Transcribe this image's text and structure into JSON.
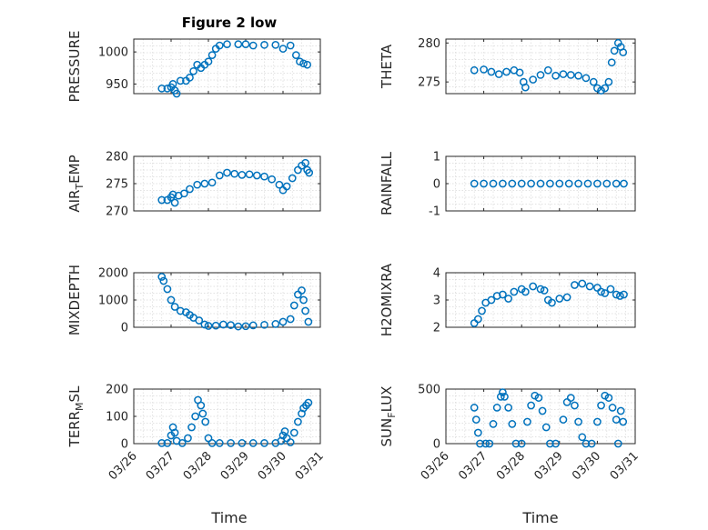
{
  "figure": {
    "title": "Figure 2 low",
    "xlabel": "Time",
    "marker_color": "#0072BD"
  },
  "chart_data": [
    {
      "id": "pressure",
      "type": "scatter",
      "ylabel": "PRESSURE",
      "ylim": [
        935,
        1020
      ],
      "yticks": [
        {
          "v": 950,
          "label": "950"
        },
        {
          "v": 1000,
          "label": "1000"
        }
      ],
      "xlim": [
        0,
        5
      ],
      "xticks": [
        {
          "v": 0,
          "label": "03/26"
        },
        {
          "v": 1,
          "label": "03/27"
        },
        {
          "v": 2,
          "label": "03/28"
        },
        {
          "v": 3,
          "label": "03/29"
        },
        {
          "v": 4,
          "label": "03/30"
        },
        {
          "v": 5,
          "label": "03/31"
        }
      ],
      "points": [
        [
          0.75,
          943
        ],
        [
          0.9,
          943
        ],
        [
          1.0,
          945
        ],
        [
          1.05,
          950
        ],
        [
          1.1,
          940
        ],
        [
          1.15,
          935
        ],
        [
          1.25,
          955
        ],
        [
          1.4,
          955
        ],
        [
          1.5,
          960
        ],
        [
          1.6,
          970
        ],
        [
          1.7,
          980
        ],
        [
          1.8,
          975
        ],
        [
          1.9,
          980
        ],
        [
          2.0,
          985
        ],
        [
          2.1,
          995
        ],
        [
          2.2,
          1005
        ],
        [
          2.3,
          1010
        ],
        [
          2.5,
          1012
        ],
        [
          2.8,
          1012
        ],
        [
          3.0,
          1012
        ],
        [
          3.2,
          1010
        ],
        [
          3.5,
          1011
        ],
        [
          3.8,
          1011
        ],
        [
          4.0,
          1005
        ],
        [
          4.2,
          1010
        ],
        [
          4.35,
          995
        ],
        [
          4.45,
          985
        ],
        [
          4.55,
          982
        ],
        [
          4.65,
          980
        ]
      ]
    },
    {
      "id": "theta",
      "type": "scatter",
      "ylabel": "THETA",
      "ylim": [
        273.5,
        280.5
      ],
      "yticks": [
        {
          "v": 275,
          "label": "275"
        },
        {
          "v": 280,
          "label": "280"
        }
      ],
      "xlim": [
        0,
        5
      ],
      "xticks": [
        {
          "v": 0,
          "label": "03/26"
        },
        {
          "v": 1,
          "label": "03/27"
        },
        {
          "v": 2,
          "label": "03/28"
        },
        {
          "v": 3,
          "label": "03/29"
        },
        {
          "v": 4,
          "label": "03/30"
        },
        {
          "v": 5,
          "label": "03/31"
        }
      ],
      "points": [
        [
          0.75,
          276.5
        ],
        [
          1.0,
          276.6
        ],
        [
          1.2,
          276.3
        ],
        [
          1.4,
          276.0
        ],
        [
          1.6,
          276.3
        ],
        [
          1.8,
          276.5
        ],
        [
          1.95,
          276.2
        ],
        [
          2.05,
          275.0
        ],
        [
          2.1,
          274.3
        ],
        [
          2.3,
          275.3
        ],
        [
          2.5,
          275.9
        ],
        [
          2.7,
          276.5
        ],
        [
          2.9,
          275.8
        ],
        [
          3.1,
          276.0
        ],
        [
          3.3,
          275.9
        ],
        [
          3.5,
          275.8
        ],
        [
          3.7,
          275.5
        ],
        [
          3.9,
          275.0
        ],
        [
          4.0,
          274.2
        ],
        [
          4.1,
          273.9
        ],
        [
          4.2,
          274.2
        ],
        [
          4.3,
          275.0
        ],
        [
          4.38,
          277.5
        ],
        [
          4.45,
          279.0
        ],
        [
          4.55,
          280.0
        ],
        [
          4.62,
          279.5
        ],
        [
          4.68,
          278.8
        ]
      ]
    },
    {
      "id": "air_temp",
      "type": "scatter",
      "ylabel": "AIR_TEMP",
      "ylim": [
        270,
        280
      ],
      "yticks": [
        {
          "v": 270,
          "label": "270"
        },
        {
          "v": 275,
          "label": "275"
        },
        {
          "v": 280,
          "label": "280"
        }
      ],
      "xlim": [
        0,
        5
      ],
      "xticks": [
        {
          "v": 0,
          "label": "03/26"
        },
        {
          "v": 1,
          "label": "03/27"
        },
        {
          "v": 2,
          "label": "03/28"
        },
        {
          "v": 3,
          "label": "03/29"
        },
        {
          "v": 4,
          "label": "03/30"
        },
        {
          "v": 5,
          "label": "03/31"
        }
      ],
      "points": [
        [
          0.75,
          272.0
        ],
        [
          0.9,
          272.0
        ],
        [
          1.0,
          272.5
        ],
        [
          1.05,
          273.0
        ],
        [
          1.1,
          271.5
        ],
        [
          1.2,
          272.8
        ],
        [
          1.35,
          273.2
        ],
        [
          1.5,
          274.0
        ],
        [
          1.7,
          274.8
        ],
        [
          1.9,
          275.0
        ],
        [
          2.1,
          275.2
        ],
        [
          2.3,
          276.5
        ],
        [
          2.5,
          277.0
        ],
        [
          2.7,
          276.8
        ],
        [
          2.9,
          276.6
        ],
        [
          3.1,
          276.7
        ],
        [
          3.3,
          276.5
        ],
        [
          3.5,
          276.3
        ],
        [
          3.7,
          275.8
        ],
        [
          3.9,
          274.8
        ],
        [
          4.0,
          273.8
        ],
        [
          4.1,
          274.5
        ],
        [
          4.25,
          276.0
        ],
        [
          4.4,
          277.5
        ],
        [
          4.5,
          278.3
        ],
        [
          4.6,
          278.8
        ],
        [
          4.65,
          277.5
        ],
        [
          4.7,
          277.0
        ]
      ]
    },
    {
      "id": "rainfall",
      "type": "scatter",
      "ylabel": "RAINFALL",
      "ylim": [
        -1,
        1
      ],
      "yticks": [
        {
          "v": -1,
          "label": "-1"
        },
        {
          "v": 0,
          "label": "0"
        },
        {
          "v": 1,
          "label": "1"
        }
      ],
      "xlim": [
        0,
        5
      ],
      "xticks": [
        {
          "v": 0,
          "label": "03/26"
        },
        {
          "v": 1,
          "label": "03/27"
        },
        {
          "v": 2,
          "label": "03/28"
        },
        {
          "v": 3,
          "label": "03/29"
        },
        {
          "v": 4,
          "label": "03/30"
        },
        {
          "v": 5,
          "label": "03/31"
        }
      ],
      "points": [
        [
          0.75,
          0
        ],
        [
          1.0,
          0
        ],
        [
          1.25,
          0
        ],
        [
          1.5,
          0
        ],
        [
          1.75,
          0
        ],
        [
          2.0,
          0
        ],
        [
          2.25,
          0
        ],
        [
          2.5,
          0
        ],
        [
          2.75,
          0
        ],
        [
          3.0,
          0
        ],
        [
          3.25,
          0
        ],
        [
          3.5,
          0
        ],
        [
          3.75,
          0
        ],
        [
          4.0,
          0
        ],
        [
          4.25,
          0
        ],
        [
          4.5,
          0
        ],
        [
          4.7,
          0
        ]
      ]
    },
    {
      "id": "mixdepth",
      "type": "scatter",
      "ylabel": "MIXDEPTH",
      "ylim": [
        0,
        2000
      ],
      "yticks": [
        {
          "v": 0,
          "label": "0"
        },
        {
          "v": 1000,
          "label": "1000"
        },
        {
          "v": 2000,
          "label": "2000"
        }
      ],
      "xlim": [
        0,
        5
      ],
      "xticks": [
        {
          "v": 0,
          "label": "03/26"
        },
        {
          "v": 1,
          "label": "03/27"
        },
        {
          "v": 2,
          "label": "03/28"
        },
        {
          "v": 3,
          "label": "03/29"
        },
        {
          "v": 4,
          "label": "03/30"
        },
        {
          "v": 5,
          "label": "03/31"
        }
      ],
      "points": [
        [
          0.75,
          1850
        ],
        [
          0.8,
          1700
        ],
        [
          0.9,
          1400
        ],
        [
          1.0,
          1000
        ],
        [
          1.1,
          750
        ],
        [
          1.25,
          600
        ],
        [
          1.4,
          550
        ],
        [
          1.5,
          450
        ],
        [
          1.6,
          350
        ],
        [
          1.75,
          250
        ],
        [
          1.9,
          100
        ],
        [
          2.0,
          50
        ],
        [
          2.2,
          60
        ],
        [
          2.4,
          100
        ],
        [
          2.6,
          80
        ],
        [
          2.8,
          30
        ],
        [
          3.0,
          40
        ],
        [
          3.2,
          70
        ],
        [
          3.5,
          90
        ],
        [
          3.8,
          120
        ],
        [
          4.0,
          200
        ],
        [
          4.2,
          300
        ],
        [
          4.3,
          800
        ],
        [
          4.4,
          1200
        ],
        [
          4.5,
          1350
        ],
        [
          4.55,
          1000
        ],
        [
          4.6,
          600
        ],
        [
          4.68,
          200
        ]
      ]
    },
    {
      "id": "h2omixra",
      "type": "scatter",
      "ylabel": "H2OMIXRA",
      "ylim": [
        2,
        4
      ],
      "yticks": [
        {
          "v": 2,
          "label": "2"
        },
        {
          "v": 3,
          "label": "3"
        },
        {
          "v": 4,
          "label": "4"
        }
      ],
      "xlim": [
        0,
        5
      ],
      "xticks": [
        {
          "v": 0,
          "label": "03/26"
        },
        {
          "v": 1,
          "label": "03/27"
        },
        {
          "v": 2,
          "label": "03/28"
        },
        {
          "v": 3,
          "label": "03/29"
        },
        {
          "v": 4,
          "label": "03/30"
        },
        {
          "v": 5,
          "label": "03/31"
        }
      ],
      "points": [
        [
          0.75,
          2.15
        ],
        [
          0.85,
          2.3
        ],
        [
          0.95,
          2.6
        ],
        [
          1.05,
          2.9
        ],
        [
          1.2,
          3.0
        ],
        [
          1.35,
          3.15
        ],
        [
          1.5,
          3.2
        ],
        [
          1.65,
          3.05
        ],
        [
          1.8,
          3.3
        ],
        [
          2.0,
          3.4
        ],
        [
          2.1,
          3.3
        ],
        [
          2.3,
          3.5
        ],
        [
          2.5,
          3.4
        ],
        [
          2.6,
          3.35
        ],
        [
          2.7,
          3.0
        ],
        [
          2.8,
          2.9
        ],
        [
          3.0,
          3.05
        ],
        [
          3.2,
          3.1
        ],
        [
          3.4,
          3.55
        ],
        [
          3.6,
          3.6
        ],
        [
          3.8,
          3.5
        ],
        [
          4.0,
          3.45
        ],
        [
          4.1,
          3.3
        ],
        [
          4.2,
          3.25
        ],
        [
          4.35,
          3.4
        ],
        [
          4.5,
          3.2
        ],
        [
          4.6,
          3.15
        ],
        [
          4.7,
          3.2
        ]
      ]
    },
    {
      "id": "terr_msl",
      "type": "scatter",
      "ylabel": "TERR_MSL",
      "ylim": [
        0,
        200
      ],
      "yticks": [
        {
          "v": 0,
          "label": "0"
        },
        {
          "v": 100,
          "label": "100"
        },
        {
          "v": 200,
          "label": "200"
        }
      ],
      "xlim": [
        0,
        5
      ],
      "xticks": [
        {
          "v": 0,
          "label": "03/26"
        },
        {
          "v": 1,
          "label": "03/27"
        },
        {
          "v": 2,
          "label": "03/28"
        },
        {
          "v": 3,
          "label": "03/29"
        },
        {
          "v": 4,
          "label": "03/30"
        },
        {
          "v": 5,
          "label": "03/31"
        }
      ],
      "points": [
        [
          0.75,
          2
        ],
        [
          0.9,
          2
        ],
        [
          1.0,
          30
        ],
        [
          1.05,
          60
        ],
        [
          1.1,
          40
        ],
        [
          1.15,
          10
        ],
        [
          1.3,
          2
        ],
        [
          1.45,
          20
        ],
        [
          1.55,
          60
        ],
        [
          1.65,
          100
        ],
        [
          1.72,
          160
        ],
        [
          1.8,
          140
        ],
        [
          1.85,
          110
        ],
        [
          1.92,
          80
        ],
        [
          2.0,
          20
        ],
        [
          2.1,
          2
        ],
        [
          2.3,
          2
        ],
        [
          2.6,
          2
        ],
        [
          2.9,
          2
        ],
        [
          3.2,
          2
        ],
        [
          3.5,
          2
        ],
        [
          3.8,
          2
        ],
        [
          3.95,
          10
        ],
        [
          4.0,
          30
        ],
        [
          4.05,
          45
        ],
        [
          4.1,
          20
        ],
        [
          4.2,
          5
        ],
        [
          4.3,
          40
        ],
        [
          4.4,
          80
        ],
        [
          4.5,
          110
        ],
        [
          4.55,
          130
        ],
        [
          4.62,
          140
        ],
        [
          4.68,
          150
        ]
      ]
    },
    {
      "id": "sun_flux",
      "type": "scatter",
      "ylabel": "SUN_FLUX",
      "ylim": [
        0,
        500
      ],
      "yticks": [
        {
          "v": 0,
          "label": "0"
        },
        {
          "v": 500,
          "label": "500"
        }
      ],
      "xlim": [
        0,
        5
      ],
      "xticks": [
        {
          "v": 0,
          "label": "03/26"
        },
        {
          "v": 1,
          "label": "03/27"
        },
        {
          "v": 2,
          "label": "03/28"
        },
        {
          "v": 3,
          "label": "03/29"
        },
        {
          "v": 4,
          "label": "03/30"
        },
        {
          "v": 5,
          "label": "03/31"
        }
      ],
      "points": [
        [
          0.75,
          330
        ],
        [
          0.8,
          220
        ],
        [
          0.85,
          100
        ],
        [
          0.9,
          0
        ],
        [
          1.05,
          0
        ],
        [
          1.15,
          0
        ],
        [
          1.25,
          180
        ],
        [
          1.35,
          330
        ],
        [
          1.45,
          430
        ],
        [
          1.5,
          470
        ],
        [
          1.55,
          430
        ],
        [
          1.65,
          330
        ],
        [
          1.75,
          180
        ],
        [
          1.85,
          0
        ],
        [
          2.0,
          0
        ],
        [
          2.15,
          200
        ],
        [
          2.25,
          350
        ],
        [
          2.35,
          440
        ],
        [
          2.45,
          420
        ],
        [
          2.55,
          300
        ],
        [
          2.65,
          150
        ],
        [
          2.75,
          0
        ],
        [
          2.9,
          0
        ],
        [
          3.1,
          220
        ],
        [
          3.2,
          380
        ],
        [
          3.3,
          420
        ],
        [
          3.4,
          350
        ],
        [
          3.5,
          200
        ],
        [
          3.6,
          60
        ],
        [
          3.7,
          0
        ],
        [
          3.85,
          0
        ],
        [
          4.0,
          200
        ],
        [
          4.1,
          350
        ],
        [
          4.2,
          440
        ],
        [
          4.3,
          420
        ],
        [
          4.4,
          330
        ],
        [
          4.5,
          220
        ],
        [
          4.55,
          0
        ],
        [
          4.62,
          300
        ],
        [
          4.68,
          200
        ]
      ]
    }
  ]
}
